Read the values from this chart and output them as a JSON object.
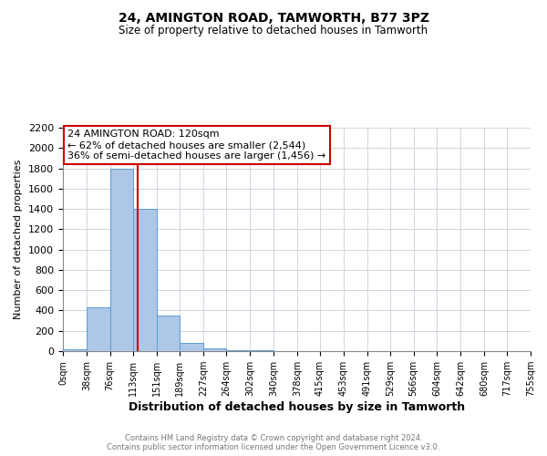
{
  "title": "24, AMINGTON ROAD, TAMWORTH, B77 3PZ",
  "subtitle": "Size of property relative to detached houses in Tamworth",
  "xlabel": "Distribution of detached houses by size in Tamworth",
  "ylabel": "Number of detached properties",
  "bin_edges": [
    0,
    38,
    76,
    113,
    151,
    189,
    227,
    264,
    302,
    340,
    378,
    415,
    453,
    491,
    529,
    566,
    604,
    642,
    680,
    717,
    755
  ],
  "bar_heights": [
    20,
    430,
    1800,
    1400,
    350,
    80,
    25,
    10,
    5,
    0,
    0,
    0,
    0,
    0,
    0,
    0,
    0,
    0,
    0,
    0
  ],
  "bar_color": "#aec6e8",
  "bar_edge_color": "#5b9bd5",
  "property_value": 120,
  "vline_color": "#cc0000",
  "annotation_box_edge": "#cc0000",
  "annotation_text_line1": "24 AMINGTON ROAD: 120sqm",
  "annotation_text_line2": "← 62% of detached houses are smaller (2,544)",
  "annotation_text_line3": "36% of semi-detached houses are larger (1,456) →",
  "ylim": [
    0,
    2200
  ],
  "yticks": [
    0,
    200,
    400,
    600,
    800,
    1000,
    1200,
    1400,
    1600,
    1800,
    2000,
    2200
  ],
  "tick_labels": [
    "0sqm",
    "38sqm",
    "76sqm",
    "113sqm",
    "151sqm",
    "189sqm",
    "227sqm",
    "264sqm",
    "302sqm",
    "340sqm",
    "378sqm",
    "415sqm",
    "453sqm",
    "491sqm",
    "529sqm",
    "566sqm",
    "604sqm",
    "642sqm",
    "680sqm",
    "717sqm",
    "755sqm"
  ],
  "footer_line1": "Contains HM Land Registry data © Crown copyright and database right 2024.",
  "footer_line2": "Contains public sector information licensed under the Open Government Licence v3.0.",
  "background_color": "#ffffff",
  "grid_color": "#c8d0d8"
}
